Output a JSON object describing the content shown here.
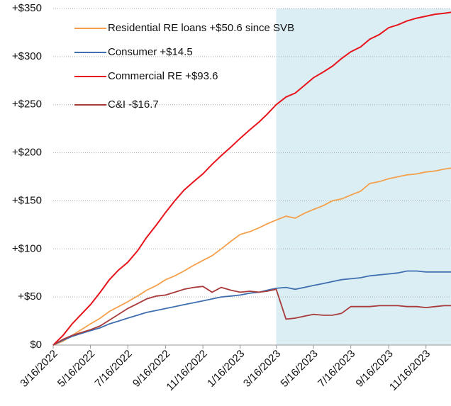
{
  "chart_data": {
    "type": "line",
    "x": [
      "3/16/2022",
      "4/1/2022",
      "4/16/2022",
      "5/1/2022",
      "5/16/2022",
      "6/1/2022",
      "6/16/2022",
      "7/1/2022",
      "7/16/2022",
      "8/1/2022",
      "8/16/2022",
      "9/1/2022",
      "9/16/2022",
      "10/1/2022",
      "10/16/2022",
      "11/1/2022",
      "11/16/2022",
      "12/1/2022",
      "12/16/2022",
      "1/1/2023",
      "1/16/2023",
      "2/1/2023",
      "2/16/2023",
      "3/1/2023",
      "3/16/2023",
      "4/1/2023",
      "4/16/2023",
      "5/1/2023",
      "5/16/2023",
      "6/1/2023",
      "6/16/2023",
      "7/1/2023",
      "7/16/2023",
      "8/1/2023",
      "8/16/2023",
      "9/1/2023",
      "9/16/2023",
      "10/1/2023",
      "10/16/2023",
      "11/1/2023",
      "11/16/2023",
      "12/1/2023",
      "12/16/2023",
      "12/27/2023"
    ],
    "series": [
      {
        "name": "Residential RE loans +$50.6 since SVB",
        "color": "#f4a04c",
        "values": [
          0,
          4,
          10,
          16,
          22,
          28,
          35,
          40,
          45,
          51,
          57,
          62,
          68,
          72,
          77,
          83,
          88,
          93,
          100,
          108,
          115,
          118,
          122,
          126,
          130,
          134,
          132,
          137,
          141,
          145,
          150,
          152,
          156,
          160,
          168,
          170,
          173,
          175,
          177,
          178,
          180,
          181,
          183,
          184
        ]
      },
      {
        "name": "Consumer +$14.5",
        "color": "#3f6fb0",
        "values": [
          0,
          5,
          9,
          12,
          15,
          18,
          22,
          25,
          28,
          31,
          34,
          36,
          38,
          40,
          42,
          44,
          46,
          48,
          50,
          51,
          52,
          54,
          55,
          57,
          59,
          60,
          58,
          60,
          62,
          64,
          66,
          68,
          69,
          70,
          72,
          73,
          74,
          75,
          77,
          77,
          76,
          76,
          76,
          76
        ]
      },
      {
        "name": "Commercial RE +$93.6",
        "color": "#e8141c",
        "values": [
          0,
          10,
          22,
          32,
          42,
          55,
          68,
          78,
          86,
          98,
          112,
          125,
          138,
          150,
          161,
          170,
          178,
          188,
          197,
          206,
          215,
          224,
          232,
          240,
          250,
          258,
          262,
          270,
          278,
          284,
          290,
          298,
          305,
          310,
          318,
          323,
          330,
          333,
          337,
          340,
          342,
          344,
          345,
          346
        ]
      },
      {
        "name": "C&I -$16.7",
        "color": "#a83a3a",
        "values": [
          0,
          6,
          10,
          13,
          16,
          20,
          26,
          32,
          38,
          43,
          48,
          51,
          52,
          55,
          58,
          60,
          61,
          55,
          60,
          57,
          55,
          56,
          55,
          56,
          58,
          27,
          28,
          30,
          32,
          31,
          31,
          33,
          40,
          40,
          40,
          41,
          41,
          41,
          40,
          40,
          39,
          40,
          41,
          41
        ]
      }
    ],
    "xlim": [
      "3/16/2022",
      "12/27/2023"
    ],
    "xticks": [
      "3/16/2022",
      "5/16/2022",
      "7/16/2022",
      "9/16/2022",
      "11/16/2022",
      "1/16/2023",
      "3/16/2023",
      "5/16/2023",
      "7/16/2023",
      "9/16/2023",
      "11/16/2023"
    ],
    "ylim": [
      0,
      350
    ],
    "yticks": [
      {
        "value": 0,
        "label": "$0"
      },
      {
        "value": 50,
        "label": "+$50"
      },
      {
        "value": 100,
        "label": "+$100"
      },
      {
        "value": 150,
        "label": "+$150"
      },
      {
        "value": 200,
        "label": "+$200"
      },
      {
        "value": 250,
        "label": "+$250"
      },
      {
        "value": 300,
        "label": "+$300"
      },
      {
        "value": 350,
        "label": "+$350"
      }
    ],
    "shade_from": "3/16/2023",
    "shade_color": "#dbeef4",
    "grid": true,
    "legend": "upper left"
  }
}
